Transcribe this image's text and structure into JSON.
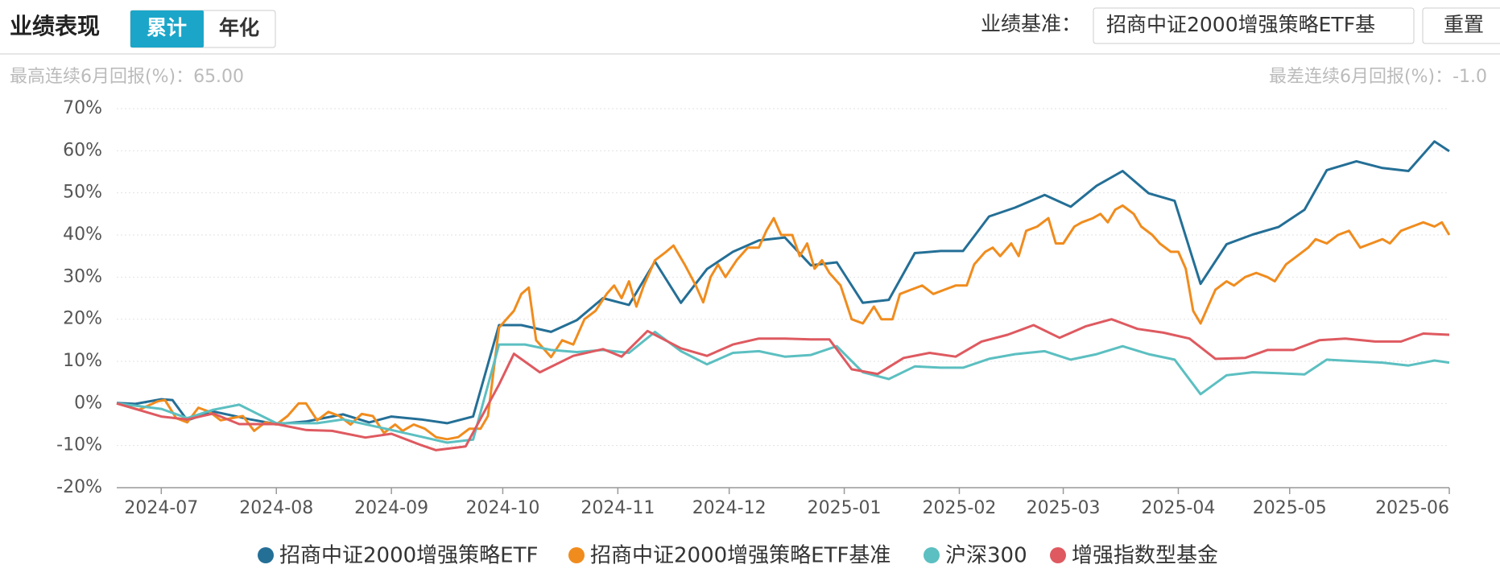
{
  "header": {
    "title": "业绩表现",
    "tabs": [
      "累计",
      "年化"
    ],
    "benchmark_label": "业绩基准：",
    "benchmark_value": "招商中证2000增强策略ETF基",
    "reset": "重置"
  },
  "stats": {
    "best": "最高连续6月回报(%)：65.00",
    "worst": "最差连续6月回报(%)：-1.0"
  },
  "chart_data": {
    "type": "line",
    "xlim": [
      -12,
      347
    ],
    "xticks": [
      {
        "value": 0,
        "label": "2024-07"
      },
      {
        "value": 31,
        "label": "2024-08"
      },
      {
        "value": 62,
        "label": "2024-09"
      },
      {
        "value": 92,
        "label": "2024-10"
      },
      {
        "value": 123,
        "label": "2024-11"
      },
      {
        "value": 153,
        "label": "2024-12"
      },
      {
        "value": 184,
        "label": "2025-01"
      },
      {
        "value": 215,
        "label": "2025-02"
      },
      {
        "value": 243,
        "label": "2025-03"
      },
      {
        "value": 274,
        "label": "2025-04"
      },
      {
        "value": 304,
        "label": "2025-05"
      },
      {
        "value": 347,
        "label": "2025-06"
      }
    ],
    "ylim": [
      -20,
      70
    ],
    "yticks": [
      {
        "value": -20,
        "label": "-20%"
      },
      {
        "value": -10,
        "label": "-10%"
      },
      {
        "value": 0,
        "label": "0%"
      },
      {
        "value": 10,
        "label": "10%"
      },
      {
        "value": 20,
        "label": "20%"
      },
      {
        "value": 30,
        "label": "30%"
      },
      {
        "value": 40,
        "label": "40%"
      },
      {
        "value": 50,
        "label": "50%"
      },
      {
        "value": 60,
        "label": "60%"
      },
      {
        "value": 70,
        "label": "70%"
      }
    ],
    "grid": true,
    "series": [
      {
        "name": "招商中证2000增强策略ETF",
        "color": "#246f96",
        "x": [
          -12,
          -7,
          0,
          3,
          7,
          14,
          24,
          31,
          39,
          49,
          56,
          62,
          70,
          77,
          84,
          91,
          97,
          105,
          112,
          119,
          126,
          133,
          140,
          147,
          154,
          161,
          168,
          175,
          182,
          189,
          196,
          203,
          210,
          216,
          223,
          230,
          238,
          245,
          252,
          259,
          266,
          273,
          280,
          287,
          294,
          301,
          308,
          314,
          322,
          329,
          336,
          343,
          347
        ],
        "values": [
          0.1,
          -0.1,
          1.0,
          0.8,
          -4.0,
          -1.9,
          -3.8,
          -4.9,
          -4.3,
          -2.6,
          -4.5,
          -3.1,
          -3.8,
          -4.7,
          -3.1,
          18.6,
          18.6,
          17.0,
          19.8,
          25.0,
          23.4,
          33.7,
          23.9,
          31.9,
          36.0,
          38.7,
          39.4,
          32.8,
          33.5,
          23.9,
          24.6,
          35.7,
          36.2,
          36.2,
          44.4,
          46.5,
          49.5,
          46.7,
          51.7,
          55.2,
          49.9,
          48.1,
          28.4,
          37.8,
          40.1,
          41.9,
          46.0,
          55.4,
          57.5,
          55.9,
          55.2,
          62.2,
          59.9
        ]
      },
      {
        "name": "招商中证2000增强策略ETF基准",
        "color": "#f08c1e",
        "x": [
          -12,
          -6,
          -1,
          1,
          4,
          7,
          10,
          13,
          16,
          19,
          22,
          25,
          28,
          31,
          34,
          37,
          39,
          42,
          45,
          48,
          51,
          54,
          57,
          60,
          63,
          65,
          68,
          71,
          74,
          77,
          80,
          83,
          86,
          88,
          91,
          95,
          97,
          99,
          101,
          105,
          108,
          111,
          114,
          117,
          120,
          122,
          124,
          126,
          128,
          130,
          133,
          136,
          138,
          141,
          144,
          146,
          148,
          150,
          152,
          155,
          158,
          161,
          163,
          165,
          167,
          170,
          172,
          174,
          176,
          178,
          180,
          183,
          186,
          189,
          192,
          194,
          197,
          199,
          202,
          205,
          208,
          211,
          214,
          217,
          219,
          222,
          224,
          226,
          229,
          231,
          233,
          236,
          239,
          241,
          243,
          246,
          248,
          251,
          253,
          255,
          257,
          259,
          262,
          264,
          267,
          269,
          272,
          274,
          276,
          278,
          280,
          282,
          284,
          287,
          289,
          292,
          295,
          298,
          300,
          303,
          306,
          309,
          311,
          314,
          317,
          320,
          323,
          326,
          329,
          331,
          334,
          337,
          340,
          343,
          345,
          347
        ],
        "values": [
          0,
          -1.5,
          0.5,
          0.8,
          -3.5,
          -4.5,
          -1,
          -2,
          -4,
          -3.5,
          -3,
          -6.5,
          -4.5,
          -5,
          -3,
          0,
          0,
          -4,
          -2,
          -3,
          -5,
          -2.5,
          -3,
          -7,
          -5,
          -6.5,
          -5,
          -6,
          -8,
          -8.5,
          -8,
          -6,
          -6,
          -3,
          18,
          22,
          26,
          27.5,
          15,
          11,
          15,
          14,
          20,
          22,
          26,
          28,
          25,
          29,
          23,
          28,
          34,
          36,
          37.5,
          33,
          28,
          24,
          30,
          33,
          30,
          34,
          37,
          37,
          41,
          44,
          40,
          40,
          35,
          38,
          32,
          34,
          31,
          28,
          20,
          19,
          23,
          20,
          20,
          26,
          27,
          28,
          26,
          27,
          28,
          28,
          33,
          36,
          37,
          35,
          38,
          35,
          41,
          42,
          44,
          38,
          38,
          42,
          43,
          44,
          45,
          43,
          46,
          47,
          45,
          42,
          40,
          38,
          36,
          36,
          32,
          22,
          19,
          23,
          27,
          29,
          28,
          30,
          31,
          30,
          29,
          33,
          35,
          37,
          39,
          38,
          40,
          41,
          37,
          38,
          39,
          38,
          41,
          42,
          43,
          42,
          43,
          40
        ]
      },
      {
        "name": "沪深300",
        "color": "#5cbfc1",
        "x": [
          -12,
          0,
          7,
          14,
          21,
          31,
          42,
          49,
          62,
          77,
          84,
          91,
          98,
          105,
          112,
          119,
          126,
          133,
          140,
          147,
          154,
          161,
          168,
          175,
          182,
          189,
          196,
          203,
          210,
          216,
          223,
          230,
          238,
          245,
          252,
          259,
          266,
          273,
          280,
          287,
          294,
          301,
          308,
          314,
          329,
          336,
          343,
          347
        ],
        "values": [
          0,
          -1.3,
          -3.5,
          -1.5,
          -0.3,
          -4.7,
          -4.7,
          -3.8,
          -6.3,
          -9.3,
          -8.6,
          14.0,
          14.0,
          12.7,
          12.2,
          12.7,
          12.0,
          17.0,
          12.4,
          9.3,
          12.0,
          12.4,
          11.1,
          11.5,
          13.6,
          7.4,
          5.8,
          8.8,
          8.5,
          8.5,
          10.6,
          11.7,
          12.4,
          10.4,
          11.7,
          13.6,
          11.7,
          10.4,
          2.2,
          6.7,
          7.4,
          7.2,
          6.9,
          10.4,
          9.7,
          9.0,
          10.2,
          9.7
        ]
      },
      {
        "name": "增强指数型基金",
        "color": "#de5a60",
        "x": [
          -12,
          0,
          7,
          14,
          21,
          31,
          39,
          46,
          55,
          62,
          70,
          74,
          82,
          91,
          95,
          102,
          111,
          119,
          124,
          131,
          140,
          147,
          154,
          161,
          168,
          175,
          180,
          186,
          193,
          200,
          207,
          214,
          221,
          228,
          235,
          242,
          249,
          256,
          263,
          270,
          277,
          284,
          292,
          298,
          305,
          312,
          319,
          327,
          334,
          340,
          347
        ],
        "values": [
          0,
          -3.1,
          -3.8,
          -2.4,
          -4.9,
          -4.9,
          -6.3,
          -6.5,
          -8.1,
          -7.2,
          -9.9,
          -11.1,
          -10.2,
          4.5,
          11.8,
          7.4,
          11.3,
          12.9,
          11.1,
          17.2,
          13.1,
          11.3,
          14.0,
          15.4,
          15.4,
          15.2,
          15.2,
          8.1,
          7.0,
          10.8,
          12.0,
          11.1,
          14.7,
          16.3,
          18.6,
          15.6,
          18.3,
          20.0,
          17.7,
          16.8,
          15.4,
          10.6,
          10.8,
          12.7,
          12.7,
          15.0,
          15.4,
          14.7,
          14.7,
          16.6,
          16.3
        ]
      }
    ]
  }
}
